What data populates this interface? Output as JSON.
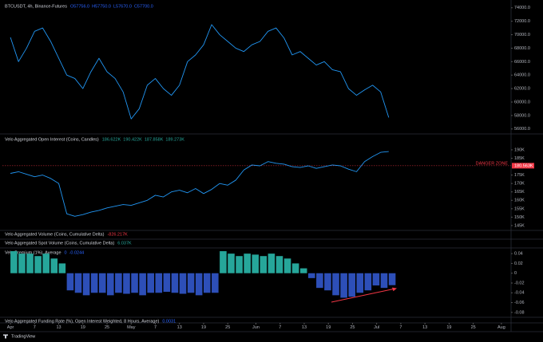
{
  "chart_data": [
    {
      "type": "line",
      "title": "BTCUSDT, 4h, Binance-Futures",
      "readouts": [
        "O57756.0",
        "H57750.0",
        "L57670.0",
        "C57700.0"
      ],
      "readout_color": "#2962ff",
      "x": [
        0,
        2,
        4,
        6,
        8,
        10,
        12,
        14,
        16,
        18,
        20,
        22,
        24,
        26,
        28,
        30,
        32,
        34,
        36,
        38,
        40,
        42,
        44,
        46,
        48,
        50,
        52,
        54,
        56,
        58,
        60,
        62,
        64,
        66,
        68,
        70,
        72,
        74,
        76,
        78,
        80,
        82,
        84,
        86,
        88,
        90,
        92,
        94
      ],
      "xlim": [
        -2,
        124.4
      ],
      "series": [
        {
          "color": "#2196f3",
          "values": [
            69600,
            66000,
            68000,
            70500,
            71000,
            69000,
            66500,
            64000,
            63500,
            62000,
            64500,
            66500,
            64500,
            63500,
            61500,
            57500,
            59000,
            62500,
            63500,
            62000,
            61000,
            62500,
            66000,
            67000,
            68500,
            71500,
            70000,
            69000,
            68000,
            67500,
            68500,
            69000,
            70500,
            71000,
            69500,
            67000,
            67500,
            66500,
            65500,
            66000,
            64800,
            64500,
            62000,
            61000,
            61800,
            62500,
            61500,
            57700
          ]
        }
      ],
      "ylim": [
        55500,
        74800
      ],
      "yticks": [
        {
          "value": 56000,
          "label": "56000.0"
        },
        {
          "value": 58000,
          "label": "58000.0"
        },
        {
          "value": 60000,
          "label": "60000.0"
        },
        {
          "value": 62000,
          "label": "62000.0"
        },
        {
          "value": 64000,
          "label": "64000.0"
        },
        {
          "value": 66000,
          "label": "66000.0"
        },
        {
          "value": 68000,
          "label": "68000.0"
        },
        {
          "value": 70000,
          "label": "70000.0"
        },
        {
          "value": 72000,
          "label": "72000.0"
        },
        {
          "value": 74000,
          "label": "74000.0"
        }
      ]
    },
    {
      "type": "line",
      "title": "Velo Aggregated Open Interest (Coins, Candles)",
      "readouts": [
        "186.622K",
        "190.422K",
        "187.858K",
        "189.273K"
      ],
      "readout_color": "#26a69a",
      "x": [
        0,
        2,
        4,
        6,
        8,
        10,
        12,
        14,
        16,
        18,
        20,
        22,
        24,
        26,
        28,
        30,
        32,
        34,
        36,
        38,
        40,
        42,
        44,
        46,
        48,
        50,
        52,
        54,
        56,
        58,
        60,
        62,
        64,
        66,
        68,
        70,
        72,
        74,
        76,
        78,
        80,
        82,
        84,
        86,
        88,
        90,
        92,
        94
      ],
      "xlim": [
        -2,
        124.4
      ],
      "series": [
        {
          "color": "#2196f3",
          "values": [
            176000,
            177000,
            175500,
            174000,
            175000,
            173000,
            170000,
            152000,
            150500,
            151500,
            153000,
            154000,
            155500,
            156500,
            157500,
            157000,
            158500,
            160000,
            163000,
            162000,
            165000,
            166000,
            164500,
            167000,
            164000,
            166500,
            170000,
            169000,
            172000,
            178000,
            181000,
            180500,
            183000,
            182000,
            181500,
            180000,
            179500,
            180500,
            179000,
            180000,
            181000,
            180500,
            178500,
            177000,
            183000,
            186000,
            188500,
            189000
          ]
        }
      ],
      "ylim": [
        142600,
        198500
      ],
      "yticks": [
        {
          "value": 145000,
          "label": "145K"
        },
        {
          "value": 150000,
          "label": "150K"
        },
        {
          "value": 155000,
          "label": "155K"
        },
        {
          "value": 160000,
          "label": "160K"
        },
        {
          "value": 165000,
          "label": "165K"
        },
        {
          "value": 170000,
          "label": "170K"
        },
        {
          "value": 175000,
          "label": "175K"
        },
        {
          "value": 185000,
          "label": "185K"
        },
        {
          "value": 190000,
          "label": "190K"
        }
      ],
      "danger": {
        "text": "DANGER ZONE",
        "value": 180563,
        "label": "180.563K",
        "color": "#f23645"
      }
    },
    {
      "type": "line",
      "title": "Velo Aggregated Volume (Coins, Cumulative Delta)",
      "readouts": [
        "-826.217K"
      ],
      "readout_color": "#f23645"
    },
    {
      "type": "line",
      "title": "Velo Aggregated Spot Volume (Coins, Cumulative Delta)",
      "readouts": [
        "6.037K"
      ],
      "readout_color": "#26a69a"
    },
    {
      "type": "bar",
      "title": "Velo Premium (1%), Average",
      "readouts": [
        "0",
        "-0.0244"
      ],
      "readout_color": "#2962ff",
      "x": [
        0,
        2,
        4,
        6,
        8,
        10,
        12,
        14,
        16,
        18,
        20,
        22,
        24,
        26,
        28,
        30,
        32,
        34,
        36,
        38,
        40,
        42,
        44,
        46,
        48,
        50,
        52,
        54,
        56,
        58,
        60,
        62,
        64,
        66,
        68,
        70,
        72,
        74,
        76,
        78,
        80,
        82,
        84,
        86,
        88,
        90,
        92,
        94
      ],
      "xlim": [
        -2,
        124.4
      ],
      "positive_color": "#26a69a",
      "negative_color": "#2d4fb8",
      "values": [
        0.045,
        0.04,
        0.04,
        0.035,
        0.04,
        0.03,
        0.02,
        -0.035,
        -0.04,
        -0.045,
        -0.04,
        -0.04,
        -0.045,
        -0.04,
        -0.042,
        -0.04,
        -0.045,
        -0.04,
        -0.04,
        -0.038,
        -0.04,
        -0.042,
        -0.04,
        -0.045,
        -0.04,
        -0.04,
        0.045,
        0.04,
        0.035,
        0.04,
        0.038,
        0.035,
        0.04,
        0.035,
        0.03,
        0.02,
        0.01,
        -0.01,
        -0.03,
        -0.035,
        -0.045,
        -0.05,
        -0.048,
        -0.04,
        -0.035,
        -0.025,
        -0.03,
        -0.0244
      ],
      "ylim": [
        -0.09,
        0.05
      ],
      "yticks": [
        0.04,
        0.02,
        0,
        -0.02,
        -0.04,
        -0.06,
        -0.08
      ]
    },
    {
      "type": "line",
      "title": "Velo Aggregated Funding Rate (%), Open Interest Weighted, 8 Hours, Average)",
      "readouts": [
        "0.0031"
      ],
      "readout_color": "#2962ff",
      "xlim": [
        -2,
        124.4
      ],
      "xticks": [
        {
          "value": 0,
          "label": "Apr"
        },
        {
          "value": 6,
          "label": "7"
        },
        {
          "value": 12,
          "label": "13"
        },
        {
          "value": 18,
          "label": "19"
        },
        {
          "value": 24,
          "label": "25"
        },
        {
          "value": 30,
          "label": "May"
        },
        {
          "value": 36,
          "label": "7"
        },
        {
          "value": 42,
          "label": "13"
        },
        {
          "value": 48,
          "label": "19"
        },
        {
          "value": 54,
          "label": "25"
        },
        {
          "value": 61,
          "label": "Jun"
        },
        {
          "value": 67,
          "label": "7"
        },
        {
          "value": 73,
          "label": "13"
        },
        {
          "value": 79,
          "label": "19"
        },
        {
          "value": 85,
          "label": "25"
        },
        {
          "value": 91,
          "label": "Jul"
        },
        {
          "value": 97,
          "label": "7"
        },
        {
          "value": 103,
          "label": "13"
        },
        {
          "value": 109,
          "label": "19"
        },
        {
          "value": 115,
          "label": "25"
        },
        {
          "value": 122,
          "label": "Aug"
        }
      ]
    }
  ],
  "footer": "TradingView"
}
